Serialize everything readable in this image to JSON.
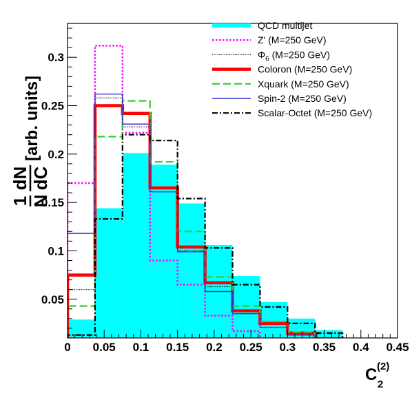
{
  "chart_data": {
    "type": "histogram",
    "title": "",
    "xlabel": {
      "main": "C",
      "subscript": "2",
      "superscript": "(2)"
    },
    "ylabel": {
      "frac_num": "1",
      "frac_den": "N",
      "deriv_num": "dN",
      "deriv_den": "dC",
      "units": "[arb. units]"
    },
    "xlim": [
      0,
      0.45
    ],
    "ylim": [
      0.01,
      0.335
    ],
    "x_ticks": [
      {
        "v": 0,
        "label": "0"
      },
      {
        "v": 0.05,
        "label": "0.05"
      },
      {
        "v": 0.1,
        "label": "0.1"
      },
      {
        "v": 0.15,
        "label": "0.15"
      },
      {
        "v": 0.2,
        "label": "0.2"
      },
      {
        "v": 0.25,
        "label": "0.25"
      },
      {
        "v": 0.3,
        "label": "0.3"
      },
      {
        "v": 0.35,
        "label": "0.35"
      },
      {
        "v": 0.4,
        "label": "0.4"
      },
      {
        "v": 0.45,
        "label": "0.45"
      }
    ],
    "y_ticks": [
      {
        "v": 0.05,
        "label": "0.05"
      },
      {
        "v": 0.1,
        "label": "0.1"
      },
      {
        "v": 0.15,
        "label": "0.15"
      },
      {
        "v": 0.2,
        "label": "0.2"
      },
      {
        "v": 0.25,
        "label": "0.25"
      },
      {
        "v": 0.3,
        "label": "0.3"
      }
    ],
    "bin_edges": [
      0,
      0.0375,
      0.075,
      0.1125,
      0.15,
      0.1875,
      0.225,
      0.2625,
      0.3,
      0.3375,
      0.375,
      0.4125,
      0.45
    ],
    "legend_position": "top-right",
    "series": [
      {
        "name": "QCD multijet",
        "color": "#00ffff",
        "style": "fill",
        "values": [
          0.029,
          0.144,
          0.201,
          0.189,
          0.149,
          0.106,
          0.074,
          0.047,
          0.03,
          0.018,
          0.01,
          0.006
        ]
      },
      {
        "name": "Z' (M=250 GeV)",
        "color": "#ff00ff",
        "style": "dotted",
        "values": [
          0.17,
          0.312,
          0.222,
          0.09,
          0.065,
          0.033,
          0.017,
          0.009,
          0.005,
          0.003,
          0.002,
          0.001
        ]
      },
      {
        "name": "Φ6 (M=250 GeV)",
        "label_main": "Φ",
        "label_sub": "6",
        "label_rest": " (M=250 GeV)",
        "color": "#000000",
        "style": "fine-dot",
        "values": [
          0.06,
          0.258,
          0.228,
          0.165,
          0.1,
          0.063,
          0.038,
          0.024,
          0.014,
          0.008,
          0.005,
          0.003
        ]
      },
      {
        "name": "Coloron (M=250 GeV)",
        "color": "#ff0000",
        "style": "thick",
        "values": [
          0.075,
          0.25,
          0.242,
          0.165,
          0.104,
          0.067,
          0.038,
          0.025,
          0.015,
          0.009,
          0.005,
          0.003
        ]
      },
      {
        "name": "Xquark (M=250 GeV)",
        "color": "#33cc33",
        "style": "dashed",
        "values": [
          0.043,
          0.218,
          0.255,
          0.192,
          0.12,
          0.073,
          0.043,
          0.027,
          0.016,
          0.009,
          0.005,
          0.003
        ]
      },
      {
        "name": "Spin-2 (M=250 GeV)",
        "color": "#3333cc",
        "style": "solid-thin",
        "values": [
          0.118,
          0.262,
          0.231,
          0.161,
          0.099,
          0.058,
          0.035,
          0.021,
          0.013,
          0.008,
          0.004,
          0.002
        ]
      },
      {
        "name": "Scalar-Octet (M=250 GeV)",
        "color": "#000000",
        "style": "dash-dot",
        "values": [
          0.013,
          0.133,
          0.22,
          0.214,
          0.154,
          0.103,
          0.065,
          0.042,
          0.025,
          0.015,
          0.008,
          0.005
        ]
      }
    ]
  }
}
